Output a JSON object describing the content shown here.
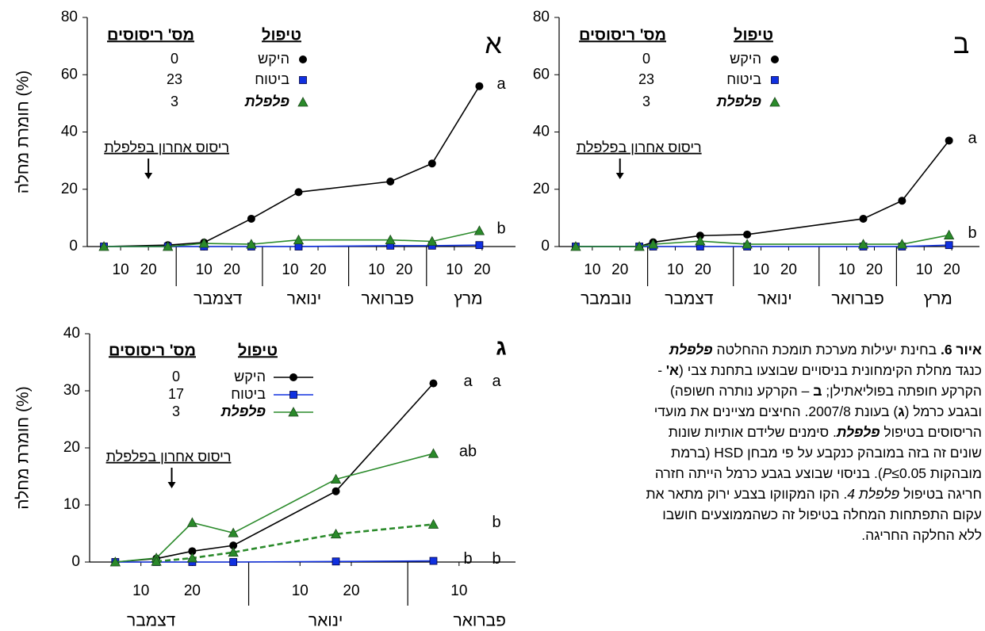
{
  "chart_data": [
    {
      "type": "line",
      "panel_label": "א",
      "ylabel": "חומרת מחלה (%)",
      "legend_title": "טיפול",
      "legend_count_title": "מס' ריסוסים",
      "annotation": {
        "text": "ריסוס אחרון בפלפלת",
        "x": 20
      },
      "x": [
        4,
        27,
        40,
        57,
        74,
        107,
        122,
        139
      ],
      "xlim": [
        -2,
        152
      ],
      "xticks": [
        {
          "value": 10,
          "label": "10"
        },
        {
          "value": 20,
          "label": "20"
        },
        {
          "value": 40,
          "label": "10"
        },
        {
          "value": 50,
          "label": "20"
        },
        {
          "value": 71,
          "label": "10"
        },
        {
          "value": 81,
          "label": "20"
        },
        {
          "value": 102,
          "label": "10"
        },
        {
          "value": 112,
          "label": "20"
        },
        {
          "value": 130,
          "label": "10"
        },
        {
          "value": 140,
          "label": "20"
        }
      ],
      "month_ticks": [
        30,
        61,
        92,
        120
      ],
      "month_labels": [
        {
          "value": 45,
          "label": "דצמבר"
        },
        {
          "value": 76,
          "label": "ינואר"
        },
        {
          "value": 106,
          "label": "פברואר"
        },
        {
          "value": 135,
          "label": "מרץ"
        }
      ],
      "ylim": [
        0,
        80
      ],
      "yticks": [
        0,
        20,
        40,
        60,
        80
      ],
      "letter_colors": [
        "#000000"
      ],
      "series": [
        {
          "name": "היקש",
          "sprays": 0,
          "color": "#000000",
          "marker": "circle",
          "values": [
            0,
            0.5,
            1.4,
            9.7,
            19,
            22.7,
            29,
            56
          ],
          "letters": [
            "a"
          ]
        },
        {
          "name": "ביטוח",
          "sprays": 23,
          "color": "#1030e0",
          "marker": "square",
          "values": [
            0,
            0,
            0,
            0,
            0,
            0.3,
            0.3,
            0.5
          ]
        },
        {
          "name": "פלפלת",
          "sprays": 3,
          "color": "#2a8a2a",
          "marker": "triangle",
          "italic": true,
          "values": [
            0,
            0,
            1.1,
            0.8,
            2.3,
            2.3,
            1.8,
            5.5
          ],
          "letters": [
            "b"
          ]
        }
      ]
    },
    {
      "type": "line",
      "panel_label": "ב",
      "legend_title": "טיפול",
      "legend_count_title": "מס' ריסוסים",
      "annotation": {
        "text": "ריסוס אחרון בפלפלת",
        "x": 20
      },
      "x": [
        4,
        27,
        32,
        49,
        66,
        108,
        122,
        139
      ],
      "xlim": [
        -2,
        150
      ],
      "xticks": [
        {
          "value": 10,
          "label": "10"
        },
        {
          "value": 20,
          "label": "20"
        },
        {
          "value": 40,
          "label": "10"
        },
        {
          "value": 50,
          "label": "20"
        },
        {
          "value": 71,
          "label": "10"
        },
        {
          "value": 81,
          "label": "20"
        },
        {
          "value": 102,
          "label": "10"
        },
        {
          "value": 112,
          "label": "20"
        },
        {
          "value": 130,
          "label": "10"
        },
        {
          "value": 140,
          "label": "20"
        }
      ],
      "month_ticks": [
        30,
        61,
        92,
        120
      ],
      "month_labels": [
        {
          "value": 15,
          "label": "נובמבר"
        },
        {
          "value": 45,
          "label": "דצמבר"
        },
        {
          "value": 76,
          "label": "ינואר"
        },
        {
          "value": 106,
          "label": "פברואר"
        },
        {
          "value": 135,
          "label": "מרץ"
        }
      ],
      "ylim": [
        0,
        80
      ],
      "yticks": [
        0,
        20,
        40,
        60,
        80
      ],
      "letter_colors": [
        "#000000"
      ],
      "series": [
        {
          "name": "היקש",
          "sprays": 0,
          "color": "#000000",
          "marker": "circle",
          "values": [
            0,
            0,
            1.5,
            3.8,
            4.2,
            9.7,
            16,
            37
          ],
          "letters": [
            "a"
          ]
        },
        {
          "name": "ביטוח",
          "sprays": 23,
          "color": "#1030e0",
          "marker": "square",
          "values": [
            0,
            0,
            0,
            0,
            0,
            0,
            0,
            0.5
          ]
        },
        {
          "name": "פלפלת",
          "sprays": 3,
          "color": "#2a8a2a",
          "marker": "triangle",
          "italic": true,
          "values": [
            0,
            0,
            0.8,
            1.9,
            0.8,
            0.8,
            0.8,
            4
          ],
          "letters": [
            "b"
          ]
        }
      ]
    },
    {
      "type": "line",
      "panel_label": "ג",
      "ylabel": "חומרת מחלה (%)",
      "legend_title": "טיפול",
      "legend_count_title": "מס' ריסוסים",
      "legend_lines": true,
      "annotation": {
        "text": "ריסוס אחרון בפלפלת",
        "x": 16
      },
      "x": [
        5,
        13,
        20,
        28,
        48,
        67
      ],
      "xlim": [
        0,
        83
      ],
      "xticks": [
        {
          "value": 10,
          "label": "10"
        },
        {
          "value": 20,
          "label": "20"
        },
        {
          "value": 41,
          "label": "10"
        },
        {
          "value": 51,
          "label": "20"
        },
        {
          "value": 72,
          "label": "10"
        }
      ],
      "month_ticks": [
        31,
        62
      ],
      "month_labels": [
        {
          "value": 12,
          "label": "דצמבר"
        },
        {
          "value": 46,
          "label": "ינואר"
        },
        {
          "value": 76,
          "label": "פברואר"
        }
      ],
      "ylim": [
        0,
        40
      ],
      "yticks": [
        0,
        10,
        20,
        30,
        40
      ],
      "letter_colors": [
        "#000000",
        "#2a8a2a"
      ],
      "series": [
        {
          "name": "היקש",
          "sprays": 0,
          "color": "#000000",
          "marker": "circle",
          "values": [
            0,
            0.6,
            1.9,
            2.9,
            12.4,
            31.3
          ],
          "letters": [
            "a",
            "a"
          ]
        },
        {
          "name": "ביטוח",
          "sprays": 17,
          "color": "#1030e0",
          "marker": "square",
          "values": [
            0,
            0,
            0,
            0,
            0.1,
            0.2
          ],
          "letters": [
            "b",
            "b"
          ]
        },
        {
          "name": "פלפלת",
          "sprays": 3,
          "color": "#2a8a2a",
          "marker": "triangle",
          "italic": true,
          "values": [
            0,
            0.7,
            6.9,
            5.1,
            14.5,
            19
          ],
          "letters": [
            "ab",
            null
          ]
        },
        {
          "color": "#2a8a2a",
          "marker": "triangle",
          "dashed": true,
          "values": [
            null,
            0.1,
            0.7,
            1.7,
            4.9,
            6.6
          ],
          "letters": [
            null,
            "b"
          ]
        }
      ]
    }
  ],
  "caption": {
    "lines": [
      [
        {
          "text": "איור 6.",
          "bold": true
        },
        {
          "text": " בחינת יעילות מערכת תומכת ההחלטה "
        },
        {
          "text": "פלפלת",
          "bold": true,
          "italic": true
        }
      ],
      [
        {
          "text": "כנגד מחלת הקימחונית בניסויים שבוצעו בתחנת צבי ("
        },
        {
          "text": "א'",
          "bold": true
        },
        {
          "text": " -"
        }
      ],
      [
        {
          "text": "הקרקע חופתה בפוליאתילן; "
        },
        {
          "text": "ב",
          "bold": true
        },
        {
          "text": " – הקרקע נותרה חשופה)"
        }
      ],
      [
        {
          "text": "ובגבע כרמל ("
        },
        {
          "text": "ג",
          "bold": true
        },
        {
          "text": ") בעונת 2007/8. החיצים מציינים את מועדי"
        }
      ],
      [
        {
          "text": "הריסוסים בטיפול "
        },
        {
          "text": "פלפלת",
          "bold": true,
          "italic": true
        },
        {
          "text": ". סימנים שלידם אותיות שונות"
        }
      ],
      [
        {
          "text": "שונים זה בזה במובהק כנקבע על פי מבחן HSD (ברמת"
        }
      ],
      [
        {
          "text": "מובהקות "
        },
        {
          "text": "P",
          "italic": true
        },
        {
          "text": "≤0.05). בניסוי שבוצע בגבע כרמל הייתה חזרה"
        }
      ],
      [
        {
          "text": "חריגה בטיפול "
        },
        {
          "text": "פלפלת 4",
          "italic": true
        },
        {
          "text": ". הקו המקווקו בצבע ירוק מתאר את"
        }
      ],
      [
        {
          "text": "עקום התפתחות המחלה בטיפול זה כשהממוצעים חושבו"
        }
      ],
      [
        {
          "text": "ללא החלקה החריגה."
        }
      ]
    ]
  }
}
